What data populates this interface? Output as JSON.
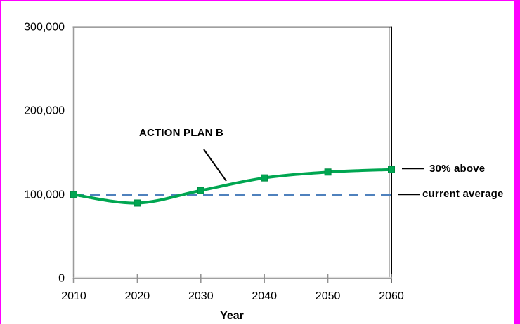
{
  "window": {
    "frame_border_color": "#ff00ff",
    "background_color": "#ffffff"
  },
  "chart_data": {
    "type": "line",
    "title": "",
    "xlabel": "Year",
    "ylabel": "",
    "x": [
      2010,
      2020,
      2030,
      2040,
      2050,
      2060
    ],
    "xtick_labels": [
      "2010",
      "2020",
      "2030",
      "2040",
      "2050",
      "2060"
    ],
    "ylim": [
      0,
      300000
    ],
    "yticks": [
      0,
      100000,
      200000,
      300000
    ],
    "ytick_labels": [
      "0",
      "100,000",
      "200,000",
      "300,000"
    ],
    "grid": false,
    "legend_position": "none",
    "series": [
      {
        "name": "ACTION PLAN B",
        "values": [
          100000,
          90000,
          105000,
          120000,
          127000,
          130000
        ],
        "color": "#00a651",
        "marker_color": "#00a651",
        "marker_edge_color": "#008a43",
        "line_style": "smooth-solid",
        "marker": "square"
      },
      {
        "name": "current average",
        "values": [
          100000,
          100000,
          100000,
          100000,
          100000,
          100000
        ],
        "color": "#4f81bd",
        "line_style": "dashed",
        "marker": "none"
      }
    ],
    "annotations": [
      {
        "text": "ACTION PLAN B",
        "target": "green series",
        "bold": true
      },
      {
        "text": "30% above",
        "target": "series end value 130,000",
        "bold": true
      },
      {
        "text": "current average",
        "target": "dashed line at 100,000",
        "bold": true
      }
    ]
  },
  "labels": {
    "series_annotation": "ACTION PLAN B",
    "right_label_top": "30% above",
    "right_label_bottom": "current average",
    "x_axis_title": "Year"
  },
  "colors": {
    "line_green": "#00a651",
    "dashed_blue": "#4f81bd",
    "axis_gray": "#9e9e9e",
    "plot_border_black": "#000000",
    "annotation_black": "#000000",
    "frame_magenta": "#ff00ff"
  }
}
